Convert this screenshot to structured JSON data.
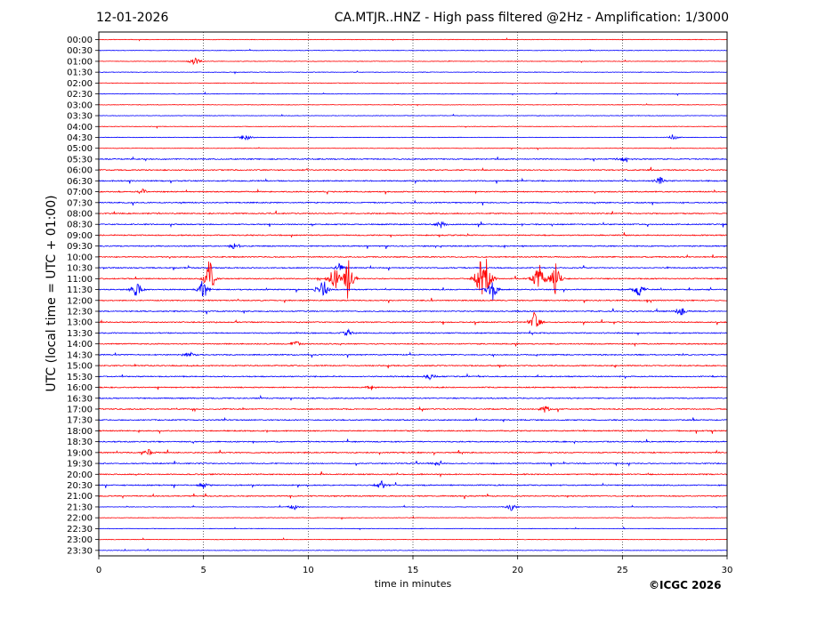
{
  "header": {
    "date": "12-01-2026",
    "title": "CA.MTJR..HNZ - High pass filtered @2Hz - Amplification: 1/3000"
  },
  "credit": "©ICGC 2026",
  "chart_data": {
    "type": "line",
    "title": "CA.MTJR..HNZ - High pass filtered @2Hz - Amplification: 1/3000",
    "xlabel": "time in minutes",
    "ylabel": "UTC (local time = UTC + 01:00)",
    "xlim": [
      0,
      30
    ],
    "xticks": [
      0,
      5,
      10,
      15,
      20,
      25,
      30
    ],
    "grid_x": [
      5,
      10,
      15,
      20,
      25
    ],
    "row_labels": [
      "00:00",
      "00:30",
      "01:00",
      "01:30",
      "02:00",
      "02:30",
      "03:00",
      "03:30",
      "04:00",
      "04:30",
      "05:00",
      "05:30",
      "06:00",
      "06:30",
      "07:00",
      "07:30",
      "08:00",
      "08:30",
      "09:00",
      "09:30",
      "10:00",
      "10:30",
      "11:00",
      "11:30",
      "12:00",
      "12:30",
      "13:00",
      "13:30",
      "14:00",
      "14:30",
      "15:00",
      "15:30",
      "16:00",
      "16:30",
      "17:00",
      "17:30",
      "18:00",
      "18:30",
      "19:00",
      "19:30",
      "20:00",
      "20:30",
      "21:00",
      "21:30",
      "22:00",
      "22:30",
      "23:00",
      "23:30"
    ],
    "trace_colors": [
      "#ff0000",
      "#0000ff"
    ],
    "events": [
      {
        "row": "01:00",
        "minute": 4.6,
        "amplitude": 0.6
      },
      {
        "row": "04:30",
        "minute": 7.0,
        "amplitude": 0.5
      },
      {
        "row": "04:30",
        "minute": 27.4,
        "amplitude": 0.5
      },
      {
        "row": "05:30",
        "minute": 25.0,
        "amplitude": 0.5
      },
      {
        "row": "06:30",
        "minute": 26.8,
        "amplitude": 0.5
      },
      {
        "row": "07:00",
        "minute": 2.1,
        "amplitude": 0.4
      },
      {
        "row": "08:30",
        "minute": 16.3,
        "amplitude": 0.5
      },
      {
        "row": "09:30",
        "minute": 6.5,
        "amplitude": 0.5
      },
      {
        "row": "10:30",
        "minute": 11.5,
        "amplitude": 0.6
      },
      {
        "row": "11:00",
        "minute": 5.3,
        "amplitude": 2.6
      },
      {
        "row": "11:00",
        "minute": 11.3,
        "amplitude": 2.4
      },
      {
        "row": "11:00",
        "minute": 11.9,
        "amplitude": 2.6
      },
      {
        "row": "11:00",
        "minute": 18.2,
        "amplitude": 2.8
      },
      {
        "row": "11:00",
        "minute": 18.5,
        "amplitude": 3.0
      },
      {
        "row": "11:00",
        "minute": 21.0,
        "amplitude": 2.2
      },
      {
        "row": "11:00",
        "minute": 21.8,
        "amplitude": 2.0
      },
      {
        "row": "11:30",
        "minute": 1.8,
        "amplitude": 1.2
      },
      {
        "row": "11:30",
        "minute": 5.0,
        "amplitude": 1.6
      },
      {
        "row": "11:30",
        "minute": 10.7,
        "amplitude": 1.5
      },
      {
        "row": "11:30",
        "minute": 18.8,
        "amplitude": 1.4
      },
      {
        "row": "11:30",
        "minute": 25.8,
        "amplitude": 1.0
      },
      {
        "row": "12:30",
        "minute": 27.8,
        "amplitude": 0.6
      },
      {
        "row": "13:00",
        "minute": 20.8,
        "amplitude": 1.3
      },
      {
        "row": "13:30",
        "minute": 11.9,
        "amplitude": 0.5
      },
      {
        "row": "14:00",
        "minute": 9.4,
        "amplitude": 0.5
      },
      {
        "row": "14:30",
        "minute": 4.3,
        "amplitude": 0.5
      },
      {
        "row": "15:30",
        "minute": 15.8,
        "amplitude": 0.5
      },
      {
        "row": "16:00",
        "minute": 13.0,
        "amplitude": 0.4
      },
      {
        "row": "17:00",
        "minute": 21.3,
        "amplitude": 0.5
      },
      {
        "row": "19:00",
        "minute": 2.4,
        "amplitude": 0.5
      },
      {
        "row": "19:30",
        "minute": 16.2,
        "amplitude": 0.4
      },
      {
        "row": "20:30",
        "minute": 13.5,
        "amplitude": 0.5
      },
      {
        "row": "20:30",
        "minute": 5.0,
        "amplitude": 0.4
      },
      {
        "row": "21:30",
        "minute": 19.7,
        "amplitude": 0.5
      },
      {
        "row": "21:30",
        "minute": 9.3,
        "amplitude": 0.4
      }
    ]
  }
}
